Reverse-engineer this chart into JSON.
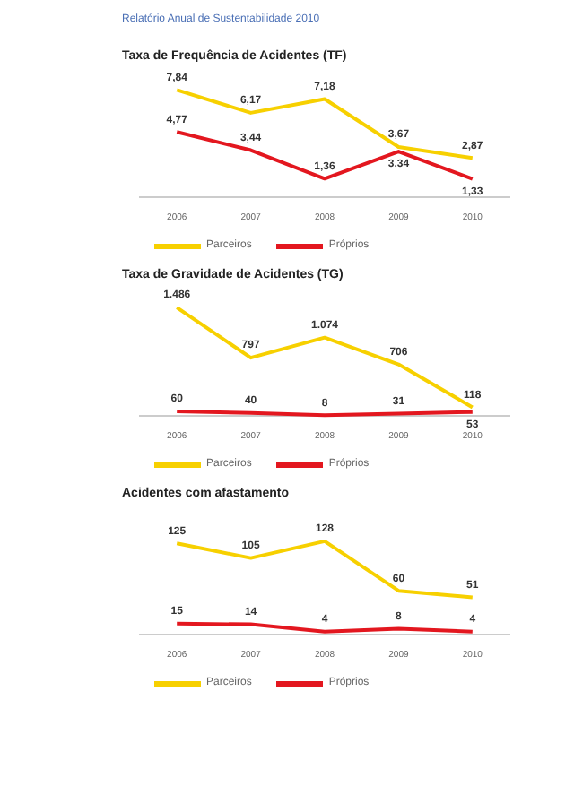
{
  "chart_data": [
    {
      "type": "line",
      "title": "Taxa de Frequência de Acidentes (TF)",
      "annotations": [
        "Relatório Anual de Sustentabilidade 2010"
      ],
      "categories": [
        "2006",
        "2007",
        "2008",
        "2009",
        "2010"
      ],
      "tick_labels": "x",
      "legend": "bottom left",
      "marker": "none",
      "series": [
        {
          "name": "Parceiros",
          "color": "#f7d000",
          "values": [
            7.84,
            6.17,
            7.18,
            3.67,
            2.87
          ],
          "value_labels": [
            "7,84",
            "6,17",
            "7,18",
            "3,67",
            "2,87"
          ]
        },
        {
          "name": "Próprios",
          "color": "#e3171f",
          "values": [
            4.77,
            3.44,
            1.36,
            3.34,
            1.33
          ],
          "value_labels": [
            "4,77",
            "3,44",
            "1,36",
            "3,34",
            "1,33"
          ]
        }
      ]
    },
    {
      "type": "line",
      "title": "Taxa de Gravidade de Acidentes (TG)",
      "categories": [
        "2006",
        "2007",
        "2008",
        "2009",
        "2010"
      ],
      "tick_labels": "x",
      "legend": "bottom left",
      "marker": "none",
      "series": [
        {
          "name": "Parceiros",
          "color": "#f7d000",
          "values": [
            1486,
            797,
            1074,
            706,
            118
          ],
          "value_labels": [
            "1.486",
            "797",
            "1.074",
            "706",
            "118"
          ]
        },
        {
          "name": "Próprios",
          "color": "#e3171f",
          "values": [
            60,
            40,
            8,
            31,
            53
          ],
          "value_labels": [
            "60",
            "40",
            "8",
            "31",
            "53"
          ]
        }
      ]
    },
    {
      "type": "line",
      "title": "Acidentes com afastamento",
      "categories": [
        "2006",
        "2007",
        "2008",
        "2009",
        "2010"
      ],
      "tick_labels": "x",
      "legend": "bottom left",
      "marker": "none",
      "series": [
        {
          "name": "Parceiros",
          "color": "#f7d000",
          "values": [
            125,
            105,
            128,
            60,
            51
          ],
          "value_labels": [
            "125",
            "105",
            "128",
            "60",
            "51"
          ]
        },
        {
          "name": "Próprios",
          "color": "#e3171f",
          "values": [
            15,
            14,
            4,
            8,
            4
          ],
          "value_labels": [
            "15",
            "14",
            "4",
            "8",
            "4"
          ]
        }
      ]
    }
  ]
}
